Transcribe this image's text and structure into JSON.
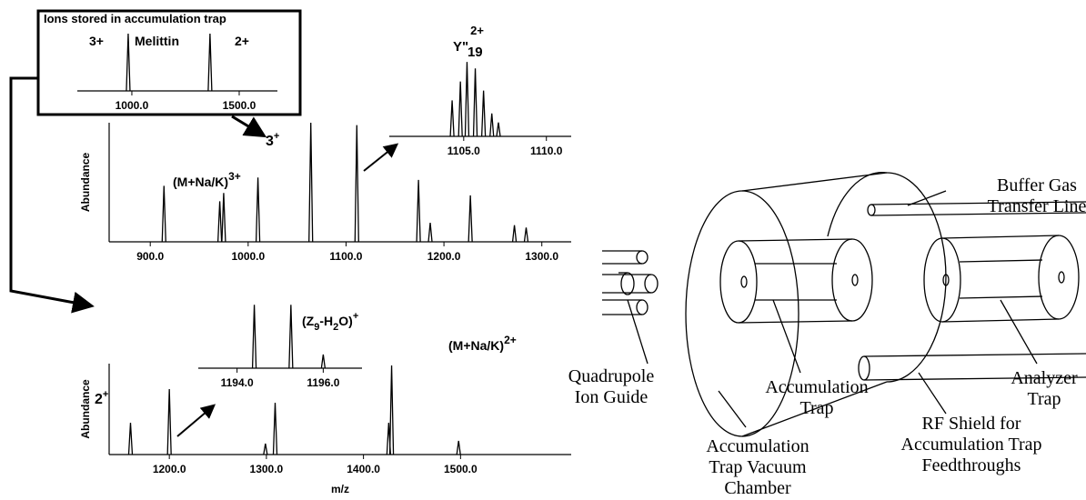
{
  "figure": {
    "box_title": "Ions stored in accumulation trap",
    "melittin": "Melittin",
    "box_charge_3": "3+",
    "box_charge_2": "2+",
    "top_charge": [
      "3",
      "+"
    ],
    "bottom_charge": [
      "2",
      "+"
    ],
    "y_ion": [
      "Y\"",
      "2+",
      "19"
    ],
    "mnak3": [
      "(M+Na/K)",
      "3+"
    ],
    "z_ion": [
      "(Z",
      "9",
      "-H",
      "2",
      "O)",
      "+"
    ],
    "mnak2": [
      "(M+Na/K)",
      "2+"
    ]
  },
  "diagram": {
    "buffer_gas": [
      "Buffer Gas",
      "Transfer Line"
    ],
    "quadrupole": [
      "Quadrupole",
      "Ion Guide"
    ],
    "accumulation_trap": [
      "Accumulation",
      "Trap"
    ],
    "analyzer_trap": [
      "Analyzer",
      "Trap"
    ],
    "rf_shield": [
      "RF Shield for",
      "Accumulation Trap",
      "Feedthroughs"
    ],
    "vacuum_chamber": [
      "Accumulation",
      "Trap Vacuum",
      "Chamber"
    ]
  },
  "chart_data": [
    {
      "type": "stem",
      "color": "#000000",
      "x": [
        983,
        1364
      ],
      "values": [
        90,
        90
      ],
      "xlim": [
        746,
        1678
      ],
      "ylim": [
        0,
        100
      ],
      "xticks": [
        {
          "value": 1000,
          "label": "1000.0"
        },
        {
          "value": 1500,
          "label": "1500.0"
        }
      ]
    },
    {
      "type": "stem",
      "color": "#000000",
      "ylabel": "Abundance",
      "x": [
        914,
        971,
        975,
        1010,
        1064,
        1111,
        1174,
        1186,
        1227,
        1272,
        1284
      ],
      "values": [
        47,
        34,
        41,
        54,
        100,
        98,
        52,
        16,
        39,
        14,
        12
      ],
      "xlim": [
        858,
        1330
      ],
      "ylim": [
        0,
        100
      ],
      "xticks": [
        {
          "value": 900,
          "label": "900.0"
        },
        {
          "value": 1000,
          "label": "1000.0"
        },
        {
          "value": 1100,
          "label": "1100.0"
        },
        {
          "value": 1200,
          "label": "1200.0"
        },
        {
          "value": 1300,
          "label": "1300.0"
        }
      ]
    },
    {
      "type": "stem",
      "color": "#000000",
      "x": [
        1104.3,
        1104.8,
        1105.2,
        1105.7,
        1106.2,
        1106.7,
        1107.1
      ],
      "values": [
        44,
        67,
        91,
        83,
        56,
        28,
        17
      ],
      "xlim": [
        1100.5,
        1111.5
      ],
      "ylim": [
        0,
        100
      ],
      "xticks": [
        {
          "value": 1105,
          "label": "1105.0"
        },
        {
          "value": 1110,
          "label": "1110.0"
        }
      ]
    },
    {
      "type": "stem",
      "color": "#000000",
      "ylabel": "Abundance",
      "xlabel": "m/z",
      "x": [
        1160,
        1200,
        1299,
        1309,
        1426,
        1429,
        1498
      ],
      "values": [
        35,
        72,
        12,
        57,
        35,
        98,
        15
      ],
      "xlim": [
        1138,
        1614
      ],
      "ylim": [
        0,
        100
      ],
      "xticks": [
        {
          "value": 1200,
          "label": "1200.0"
        },
        {
          "value": 1300,
          "label": "1300.0"
        },
        {
          "value": 1400,
          "label": "1400.0"
        },
        {
          "value": 1500,
          "label": "1500.0"
        }
      ]
    },
    {
      "type": "stem",
      "color": "#000000",
      "x": [
        1194.4,
        1195.25,
        1196.0
      ],
      "values": [
        93,
        93,
        20
      ],
      "xlim": [
        1193.1,
        1196.9
      ],
      "ylim": [
        0,
        100
      ],
      "xticks": [
        {
          "value": 1194,
          "label": "1194.0"
        },
        {
          "value": 1196,
          "label": "1196.0"
        }
      ]
    }
  ]
}
